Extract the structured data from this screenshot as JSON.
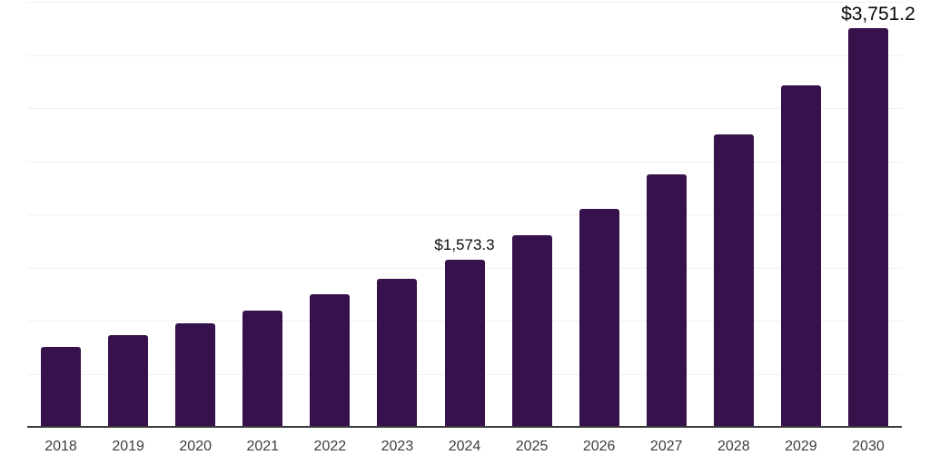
{
  "chart_data": {
    "type": "bar",
    "title": "",
    "xlabel": "",
    "ylabel": "",
    "categories": [
      "2018",
      "2019",
      "2020",
      "2021",
      "2022",
      "2023",
      "2024",
      "2025",
      "2026",
      "2027",
      "2028",
      "2029",
      "2030"
    ],
    "values": [
      750,
      860,
      975,
      1095,
      1250,
      1390,
      1573.3,
      1800,
      2055,
      2375,
      2750,
      3215,
      3751.2
    ],
    "data_labels": [
      null,
      null,
      null,
      null,
      null,
      null,
      "$1,573.3",
      null,
      null,
      null,
      null,
      null,
      "$3,751.2"
    ],
    "ylim": [
      0,
      4000
    ],
    "gridline_step": 500,
    "grid": "horizontal-only",
    "legend": "none",
    "colors": {
      "bar": "#36114B",
      "axis_line": "#3a3a3a",
      "gridline": "#f1f1f1",
      "tick_label": "#3d3d3d",
      "data_label": "#0a0a0a",
      "background": "#ffffff"
    }
  }
}
